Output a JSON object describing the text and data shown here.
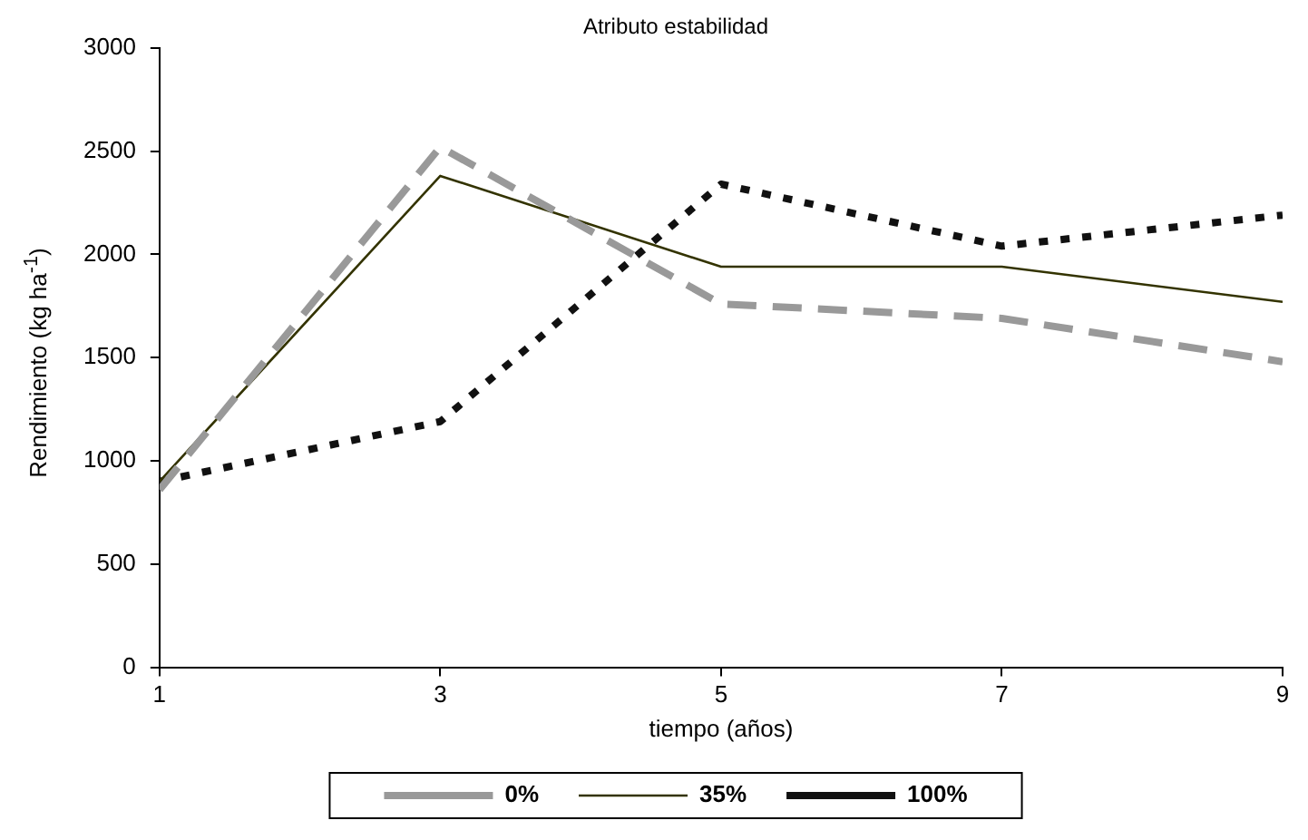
{
  "chart_data": {
    "type": "line",
    "title": "Atributo estabilidad",
    "xlabel": "tiempo (años)",
    "ylabel": "Rendimiento  (kg ha$^{-1}$)",
    "x": [
      1,
      3,
      5,
      7,
      9
    ],
    "xlim": [
      1,
      9
    ],
    "xticks": [
      1,
      3,
      5,
      7,
      9
    ],
    "ylim": [
      0,
      3000
    ],
    "yticks": [
      0,
      500,
      1000,
      1500,
      2000,
      2500,
      3000
    ],
    "grid": false,
    "legend": "bottom",
    "marker": "none",
    "series": [
      {
        "name": "0%",
        "color": "#999999",
        "line_style": "dashed",
        "values": [
          860,
          2520,
          1760,
          1690,
          1480
        ]
      },
      {
        "name": "35%",
        "color": "#333300",
        "line_style": "solid",
        "values": [
          900,
          2380,
          1940,
          1940,
          1770
        ]
      },
      {
        "name": "100%",
        "color": "#111111",
        "line_style": "dotted",
        "values": [
          900,
          1190,
          2340,
          2040,
          2190
        ]
      }
    ]
  }
}
